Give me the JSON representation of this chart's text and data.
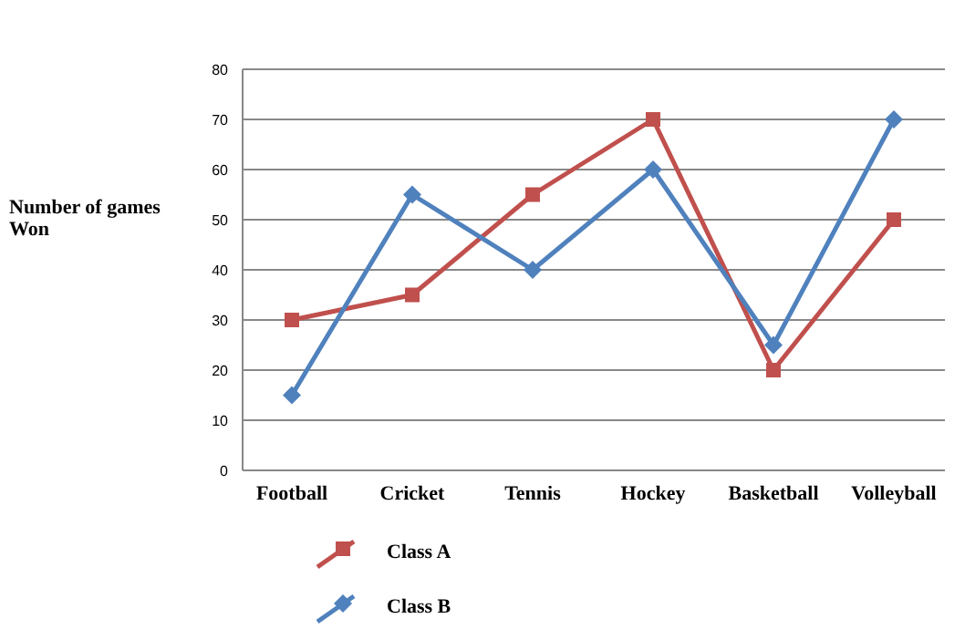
{
  "chart_data": {
    "type": "line",
    "ylabel": "Number of games Won",
    "categories": [
      "Football",
      "Cricket",
      "Tennis",
      "Hockey",
      "Basketball",
      "Volleyball"
    ],
    "series": [
      {
        "name": "Class A",
        "color": "#c0504d",
        "values": [
          30,
          35,
          55,
          70,
          20,
          50
        ],
        "marker": "square"
      },
      {
        "name": "Class B",
        "color": "#4f81bd",
        "values": [
          15,
          55,
          40,
          60,
          25,
          70
        ],
        "marker": "diamond"
      }
    ],
    "ylim": [
      0,
      80
    ],
    "yticks": [
      0,
      10,
      20,
      30,
      40,
      50,
      60,
      70,
      80
    ],
    "grid": "y",
    "legend": "bottom",
    "line_style": "solid"
  }
}
